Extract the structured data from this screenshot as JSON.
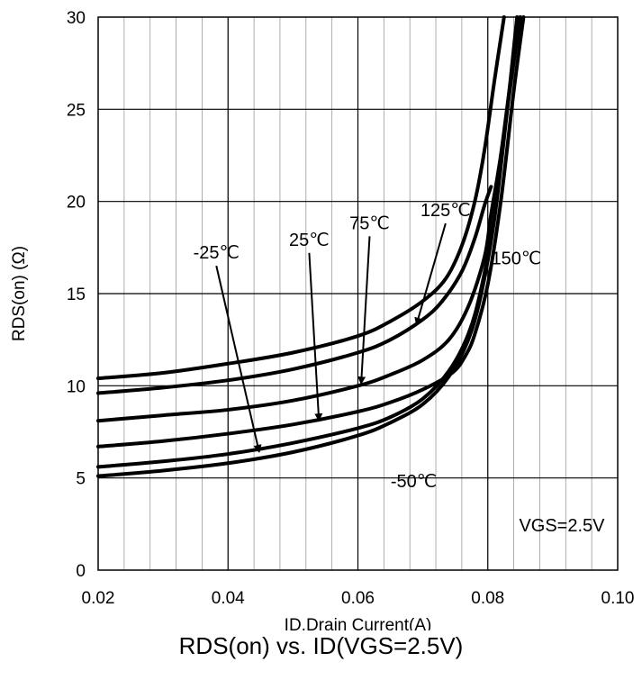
{
  "chart_data": {
    "type": "line",
    "title": "RDS(on) vs. ID(VGS=2.5V)",
    "xlabel": "ID,Drain Current(A)",
    "ylabel": "RDS(on) (Ω)",
    "xlim": [
      0.02,
      0.1
    ],
    "ylim": [
      0,
      30
    ],
    "xticks": [
      0.02,
      0.04,
      0.06,
      0.08,
      0.1
    ],
    "xtick_labels": [
      "0.02",
      "0.04",
      "0.06",
      "0.08",
      "0.10"
    ],
    "yticks": [
      0,
      5,
      10,
      15,
      20,
      25,
      30
    ],
    "ytick_labels": [
      "0",
      "5",
      "10",
      "15",
      "20",
      "25",
      "30"
    ],
    "grid": true,
    "condition": "VGS=2.5V",
    "series": [
      {
        "name": "-50℃",
        "x": [
          0.02,
          0.03,
          0.04,
          0.05,
          0.06,
          0.065,
          0.07,
          0.074,
          0.077,
          0.079,
          0.081,
          0.083,
          0.0845
        ],
        "y": [
          5.1,
          5.4,
          5.8,
          6.4,
          7.3,
          8.0,
          9.0,
          10.5,
          12.5,
          15.0,
          19.0,
          25.0,
          30.0
        ]
      },
      {
        "name": "-25℃",
        "x": [
          0.02,
          0.03,
          0.04,
          0.05,
          0.06,
          0.065,
          0.07,
          0.074,
          0.077,
          0.079,
          0.081,
          0.083,
          0.085
        ],
        "y": [
          5.6,
          5.9,
          6.3,
          6.9,
          7.7,
          8.3,
          9.3,
          10.8,
          12.8,
          15.3,
          19.2,
          25.0,
          30.0
        ]
      },
      {
        "name": "25℃",
        "x": [
          0.02,
          0.03,
          0.04,
          0.05,
          0.06,
          0.065,
          0.07,
          0.0745,
          0.0765,
          0.078,
          0.08,
          0.082,
          0.084,
          0.0855
        ],
        "y": [
          6.7,
          7.0,
          7.4,
          7.9,
          8.6,
          9.1,
          9.8,
          10.7,
          11.6,
          12.8,
          15.5,
          20.0,
          26.0,
          30.0
        ]
      },
      {
        "name": "75℃",
        "x": [
          0.02,
          0.03,
          0.04,
          0.05,
          0.06,
          0.065,
          0.07,
          0.074,
          0.077,
          0.0795,
          0.0805,
          0.082,
          0.0835,
          0.085
        ],
        "y": [
          8.1,
          8.4,
          8.7,
          9.2,
          10.0,
          10.6,
          11.4,
          12.5,
          14.3,
          17.0,
          19.3,
          22.5,
          26.5,
          30.0
        ]
      },
      {
        "name": "125℃",
        "x": [
          0.02,
          0.03,
          0.04,
          0.05,
          0.06,
          0.065,
          0.07,
          0.073,
          0.076,
          0.078,
          0.0795,
          0.0805
        ],
        "y": [
          9.6,
          9.9,
          10.3,
          10.9,
          11.8,
          12.5,
          13.6,
          14.6,
          16.2,
          18.0,
          19.8,
          20.8
        ]
      },
      {
        "name": "150℃",
        "x": [
          0.02,
          0.03,
          0.04,
          0.05,
          0.06,
          0.065,
          0.07,
          0.0735,
          0.076,
          0.078,
          0.0795,
          0.081,
          0.0825
        ],
        "y": [
          10.4,
          10.7,
          11.2,
          11.8,
          12.7,
          13.5,
          14.6,
          15.8,
          17.6,
          20.0,
          22.8,
          26.5,
          30.0
        ]
      }
    ],
    "annotations": [
      {
        "text": "-25℃",
        "x": 0.0382,
        "y": 16.9,
        "arrow_to": [
          0.0448,
          6.4
        ]
      },
      {
        "text": "25℃",
        "x": 0.0525,
        "y": 17.6,
        "arrow_to": [
          0.054,
          8.1
        ]
      },
      {
        "text": "75℃",
        "x": 0.0618,
        "y": 18.5,
        "arrow_to": [
          0.0605,
          10.1
        ]
      },
      {
        "text": "125℃",
        "x": 0.0735,
        "y": 19.2,
        "arrow_to": [
          0.069,
          13.3
        ]
      },
      {
        "text": "150℃",
        "x": 0.0844,
        "y": 16.6,
        "arrow_to": null
      },
      {
        "text": "-50℃",
        "x": 0.0686,
        "y": 4.5,
        "arrow_to": null
      },
      {
        "text": "VGS=2.5V",
        "x": 0.0914,
        "y": 2.1,
        "arrow_to": null
      }
    ]
  }
}
